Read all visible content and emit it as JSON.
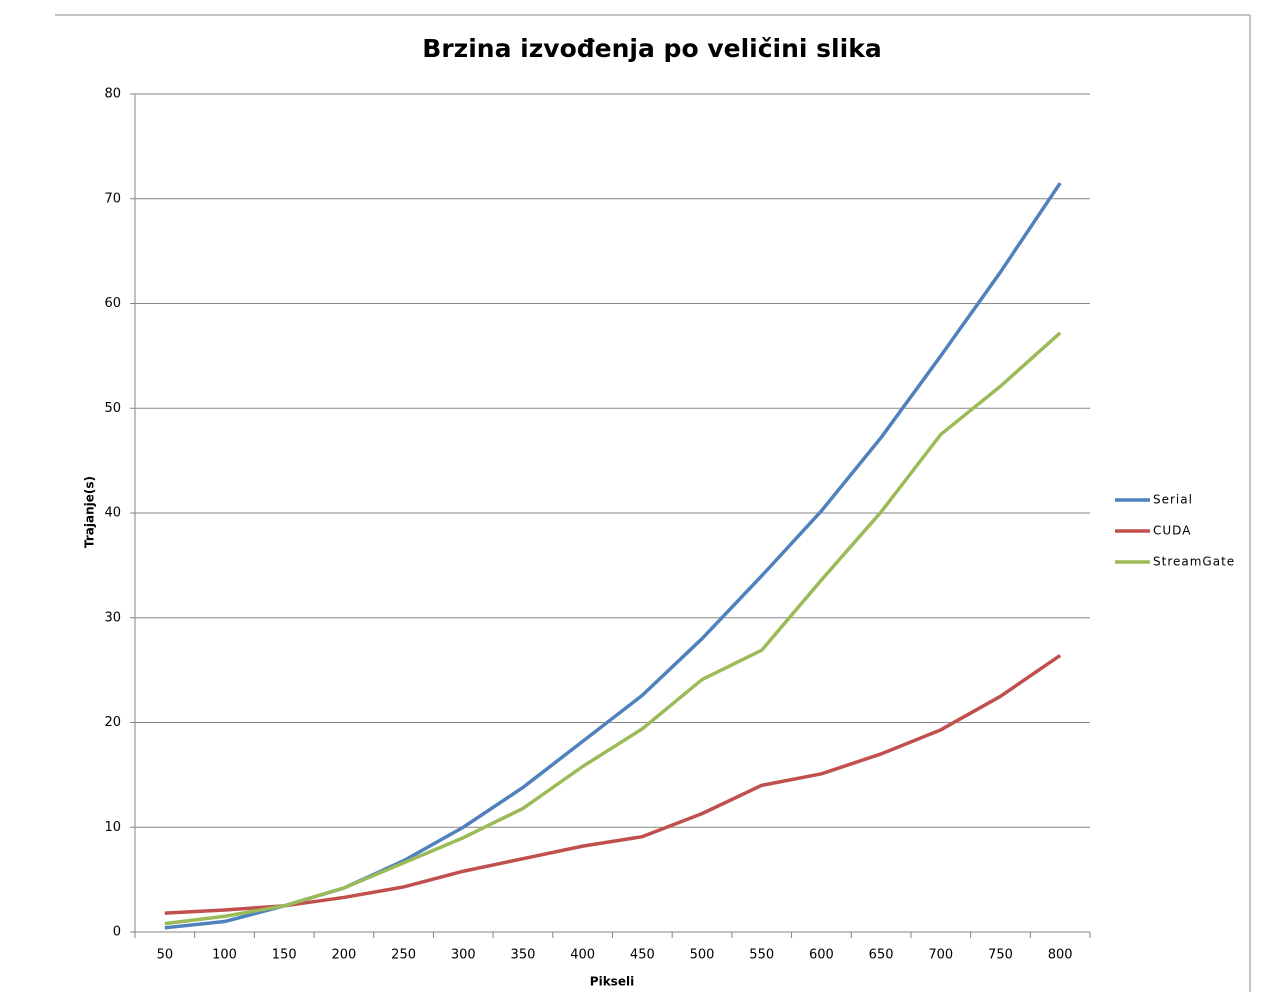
{
  "chart_data": {
    "type": "line",
    "title": "Brzina izvođenja po veličini slika",
    "x_label": "Pikseli",
    "y_label": "Trajanje(s)",
    "categories": [
      "50",
      "100",
      "150",
      "200",
      "250",
      "300",
      "350",
      "400",
      "450",
      "500",
      "550",
      "600",
      "650",
      "700",
      "750",
      "800"
    ],
    "series": [
      {
        "name": "Serial",
        "color": "#4f81bd",
        "values": [
          0.4,
          1.0,
          2.5,
          4.2,
          6.8,
          10.0,
          13.8,
          18.2,
          22.6,
          28.0,
          34.0,
          40.2,
          47.2,
          55.0,
          63.0,
          71.5
        ]
      },
      {
        "name": "CUDA",
        "color": "#c0504d",
        "values": [
          1.8,
          2.1,
          2.5,
          3.3,
          4.3,
          5.8,
          7.0,
          8.2,
          9.1,
          11.3,
          14.0,
          15.1,
          17.0,
          19.3,
          22.5,
          26.4
        ]
      },
      {
        "name": "StreamGate",
        "color": "#9bbb59",
        "values": [
          0.8,
          1.5,
          2.5,
          4.2,
          6.6,
          9.0,
          11.8,
          15.8,
          19.4,
          24.1,
          26.9,
          33.6,
          40.1,
          47.5,
          52.1,
          57.2
        ]
      }
    ],
    "ylim": [
      0,
      80
    ],
    "yticks": [
      0,
      10,
      20,
      30,
      40,
      50,
      60,
      70,
      80
    ],
    "grid": true,
    "legend": "right"
  }
}
